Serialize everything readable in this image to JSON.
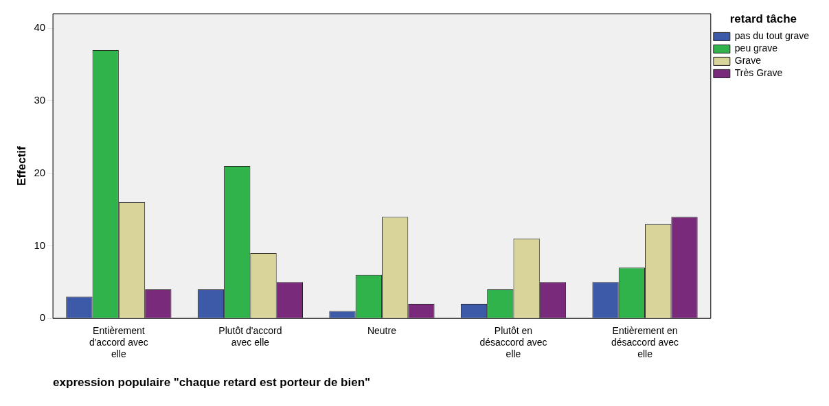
{
  "chart_data": {
    "type": "bar",
    "xlabel": "expression populaire \"chaque retard est porteur de bien\"",
    "ylabel": "Effectif",
    "legend_title": "retard tâche",
    "legend": "top right",
    "grid": false,
    "categories": [
      "Entièrement d'accord avec elle",
      "Plutôt d'accord avec elle",
      "Neutre",
      "Plutôt en désaccord avec elle",
      "Entièrement en désaccord avec elle"
    ],
    "series": [
      {
        "name": "pas du tout grave",
        "color": "#3c5aa8",
        "values": [
          3,
          4,
          1,
          2,
          5
        ]
      },
      {
        "name": "peu grave",
        "color": "#2fb34a",
        "values": [
          37,
          21,
          6,
          4,
          7
        ]
      },
      {
        "name": "Grave",
        "color": "#d8d49a",
        "values": [
          16,
          9,
          14,
          11,
          13
        ]
      },
      {
        "name": "Très Grave",
        "color": "#7a2a7a",
        "values": [
          4,
          5,
          2,
          5,
          14
        ]
      }
    ],
    "ylim": [
      0,
      42
    ],
    "yticks": [
      0,
      10,
      20,
      30,
      40
    ]
  }
}
